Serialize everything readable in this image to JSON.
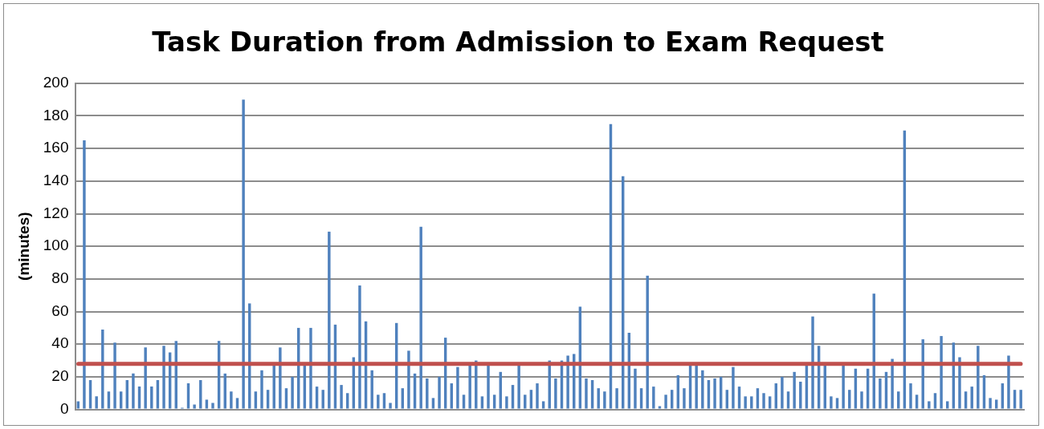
{
  "chart_data": {
    "type": "bar",
    "title": "Task Duration from Admission to Exam Request",
    "ylabel": "(minutes)",
    "categories": [
      null,
      null,
      null,
      null,
      null,
      null,
      null,
      null,
      null,
      null,
      null,
      null,
      null,
      null,
      null,
      null,
      null,
      null,
      null,
      null,
      null,
      null,
      null,
      null,
      null,
      null,
      null,
      null,
      null,
      null,
      null,
      null,
      null,
      null,
      null,
      null,
      null,
      null,
      null,
      null,
      null,
      null,
      null,
      null,
      null,
      null,
      null,
      null,
      null,
      null,
      null,
      null,
      null,
      null,
      null,
      null,
      null,
      null,
      null,
      null,
      null,
      null,
      null,
      null,
      null,
      null,
      null,
      null,
      null,
      null,
      null,
      null,
      null,
      null,
      null,
      null,
      null,
      null,
      null,
      null,
      null,
      null,
      null,
      null,
      null,
      null,
      null,
      null,
      null,
      null,
      null,
      null,
      null,
      null,
      null,
      null,
      null,
      null,
      null,
      null,
      null,
      null,
      null,
      null,
      null,
      null,
      null,
      null,
      null,
      null,
      null,
      null,
      null,
      null,
      null,
      null,
      null,
      null,
      null,
      null,
      null,
      null,
      null,
      null,
      null,
      null,
      null,
      null,
      null,
      null,
      null,
      null,
      null,
      null,
      null,
      null,
      null,
      null,
      null,
      null,
      null,
      null,
      null,
      null,
      null,
      null,
      null,
      null,
      null,
      null,
      null,
      null,
      null,
      null,
      null
    ],
    "values": [
      5,
      165,
      18,
      8,
      49,
      11,
      41,
      11,
      18,
      22,
      14,
      38,
      14,
      18,
      39,
      35,
      42,
      1,
      16,
      3,
      18,
      6,
      4,
      42,
      22,
      11,
      7,
      190,
      65,
      11,
      24,
      12,
      27,
      38,
      13,
      20,
      50,
      27,
      50,
      14,
      12,
      109,
      52,
      15,
      10,
      32,
      76,
      54,
      24,
      9,
      10,
      4,
      53,
      13,
      36,
      22,
      112,
      19,
      7,
      20,
      44,
      16,
      26,
      9,
      27,
      30,
      8,
      27,
      9,
      23,
      8,
      15,
      27,
      9,
      12,
      16,
      5,
      30,
      19,
      30,
      33,
      34,
      63,
      19,
      18,
      13,
      11,
      175,
      13,
      143,
      47,
      25,
      13,
      82,
      14,
      2,
      9,
      12,
      21,
      13,
      27,
      27,
      24,
      18,
      19,
      20,
      12,
      26,
      14,
      8,
      8,
      13,
      10,
      8,
      16,
      20,
      11,
      23,
      17,
      27,
      57,
      39,
      27,
      8,
      7,
      27,
      12,
      25,
      11,
      25,
      71,
      19,
      23,
      31,
      11,
      171,
      16,
      9,
      43,
      5,
      10,
      45,
      5,
      41,
      32,
      11,
      14,
      39,
      21,
      7,
      6,
      16,
      33,
      12,
      12
    ],
    "color": "#4f81bd",
    "ylim": [
      0,
      200
    ],
    "yticks": [
      0,
      20,
      40,
      60,
      80,
      100,
      120,
      140,
      160,
      180,
      200
    ],
    "grid": "y",
    "legend": false,
    "tick_labels": "y",
    "ref_lines": [
      {
        "axis": "y",
        "value": 28,
        "color": "#c0504d"
      }
    ]
  }
}
